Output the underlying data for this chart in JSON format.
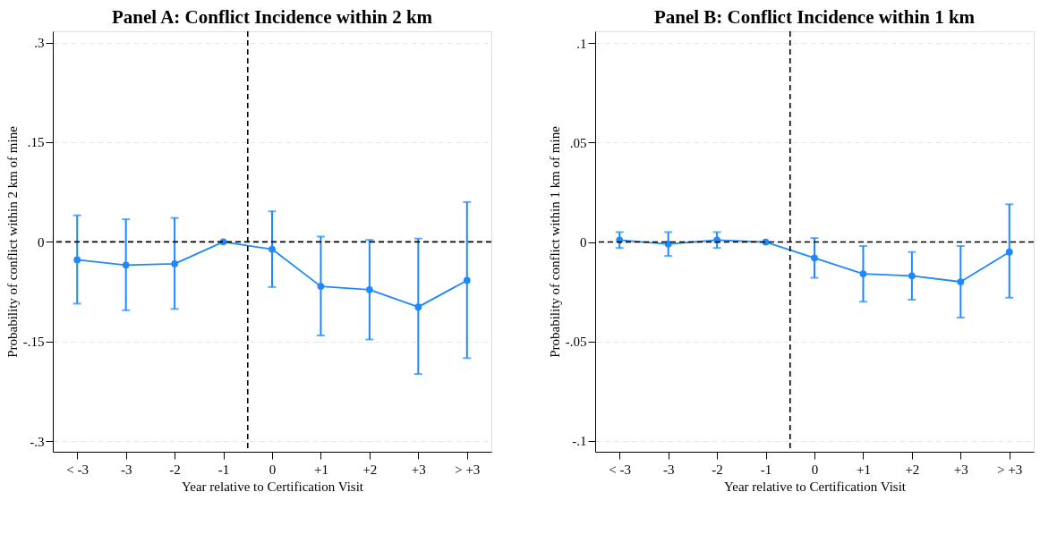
{
  "chart_data": [
    {
      "type": "line",
      "title": "Panel A: Conflict Incidence within 2 km",
      "xlabel": "Year relative to Certification Visit",
      "ylabel": "Probability of conflict within 2 km of mine",
      "x": [
        -4,
        -3,
        -2,
        -1,
        0,
        1,
        2,
        3,
        4
      ],
      "xlim": [
        -4.5,
        4.5
      ],
      "xticks": [
        {
          "value": -4,
          "label": "< -3"
        },
        -3,
        -2,
        -1,
        0,
        {
          "value": 1,
          "label": "+1"
        },
        {
          "value": 2,
          "label": "+2"
        },
        {
          "value": 3,
          "label": "+3"
        },
        {
          "value": 4,
          "label": "> +3"
        }
      ],
      "ylim": [
        -0.316,
        0.317
      ],
      "yticks": [
        {
          "value": 0.3,
          "label": ".3"
        },
        {
          "value": 0.15,
          "label": ".15"
        },
        0,
        {
          "value": -0.15,
          "label": "-.15"
        },
        {
          "value": -0.3,
          "label": "-.3"
        }
      ],
      "series": [
        {
          "color": "#1e88ff",
          "values": [
            -0.027,
            -0.035,
            -0.033,
            0,
            -0.011,
            -0.067,
            -0.072,
            -0.098,
            -0.058
          ],
          "errors": [
            [
              -0.093,
              0.04
            ],
            [
              -0.103,
              0.034
            ],
            [
              -0.101,
              0.036
            ],
            null,
            [
              -0.068,
              0.046
            ],
            [
              -0.141,
              0.008
            ],
            [
              -0.147,
              0.003
            ],
            [
              -0.199,
              0.005
            ],
            [
              -0.175,
              0.06
            ]
          ]
        }
      ],
      "ref_lines": [
        {
          "axis": "x",
          "value": -0.5,
          "color": "#000000",
          "line_style": "dashed"
        },
        {
          "axis": "y",
          "value": 0,
          "color": "#000000",
          "line_style": "dashed"
        }
      ],
      "grid": "y",
      "marker": "circle",
      "line_style": "solid"
    },
    {
      "type": "line",
      "title": "Panel B: Conflict Incidence within 1 km",
      "xlabel": "Year relative to Certification Visit",
      "ylabel": "Probability of conflict within 1 km of mine",
      "x": [
        -4,
        -3,
        -2,
        -1,
        0,
        1,
        2,
        3,
        4
      ],
      "xlim": [
        -4.5,
        4.5
      ],
      "xticks": [
        {
          "value": -4,
          "label": "< -3"
        },
        -3,
        -2,
        -1,
        0,
        {
          "value": 1,
          "label": "+1"
        },
        {
          "value": 2,
          "label": "+2"
        },
        {
          "value": 3,
          "label": "+3"
        },
        {
          "value": 4,
          "label": "> +3"
        }
      ],
      "ylim": [
        -0.1055,
        0.106
      ],
      "yticks": [
        {
          "value": 0.1,
          "label": ".1"
        },
        {
          "value": 0.05,
          "label": ".05"
        },
        0,
        {
          "value": -0.05,
          "label": "-.05"
        },
        {
          "value": -0.1,
          "label": "-.1"
        }
      ],
      "series": [
        {
          "color": "#1e88ff",
          "values": [
            0.001,
            -0.001,
            0.001,
            0,
            -0.008,
            -0.016,
            -0.017,
            -0.02,
            -0.005
          ],
          "errors": [
            [
              -0.003,
              0.005
            ],
            [
              -0.007,
              0.005
            ],
            [
              -0.003,
              0.005
            ],
            null,
            [
              -0.018,
              0.002
            ],
            [
              -0.03,
              -0.002
            ],
            [
              -0.029,
              -0.005
            ],
            [
              -0.038,
              -0.002
            ],
            [
              -0.028,
              0.019
            ]
          ]
        }
      ],
      "ref_lines": [
        {
          "axis": "x",
          "value": -0.5,
          "color": "#000000",
          "line_style": "dashed"
        },
        {
          "axis": "y",
          "value": 0,
          "color": "#000000",
          "line_style": "dashed"
        }
      ],
      "grid": "y",
      "marker": "circle",
      "line_style": "solid"
    }
  ]
}
